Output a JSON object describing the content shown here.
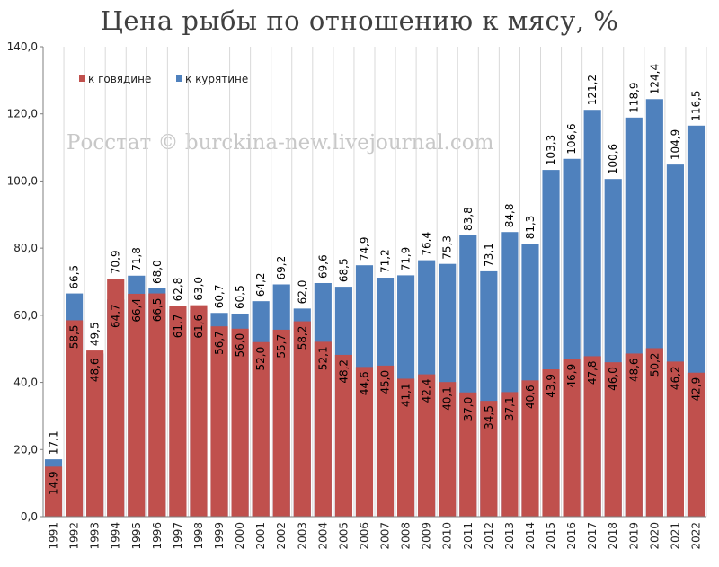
{
  "chart_data": {
    "type": "bar",
    "stacked": false,
    "overlapping": true,
    "title": "Цена рыбы по отношению к мясу, %",
    "watermark": "Росстат © burckina-new.livejournal.com",
    "categories": [
      "1991",
      "1992",
      "1993",
      "1994",
      "1995",
      "1996",
      "1997",
      "1998",
      "1999",
      "2000",
      "2001",
      "2002",
      "2003",
      "2004",
      "2005",
      "2006",
      "2007",
      "2008",
      "2009",
      "2010",
      "2011",
      "2012",
      "2013",
      "2014",
      "2015",
      "2016",
      "2017",
      "2018",
      "2019",
      "2020",
      "2021",
      "2022"
    ],
    "series": [
      {
        "name": "к говядине",
        "color": "#c0504d",
        "values": [
          14.9,
          58.5,
          49.5,
          70.9,
          66.4,
          66.5,
          62.8,
          63.0,
          56.7,
          56.0,
          52.0,
          55.7,
          58.2,
          52.1,
          48.2,
          44.6,
          45.0,
          41.1,
          42.4,
          40.1,
          37.0,
          34.5,
          37.1,
          40.6,
          43.9,
          46.9,
          47.8,
          46.0,
          48.6,
          50.2,
          46.2,
          42.9
        ]
      },
      {
        "name": "к курятине",
        "color": "#4f81bd",
        "values": [
          17.1,
          66.5,
          48.6,
          64.7,
          71.8,
          68.0,
          61.7,
          61.6,
          60.7,
          60.5,
          64.2,
          69.2,
          62.0,
          69.6,
          68.5,
          74.9,
          71.2,
          71.9,
          76.4,
          75.3,
          83.8,
          73.1,
          84.8,
          81.3,
          103.3,
          106.6,
          121.2,
          100.6,
          118.9,
          124.4,
          104.9,
          116.5
        ]
      }
    ],
    "y_ticks": [
      "0,0",
      "20,0",
      "40,0",
      "60,0",
      "80,0",
      "100,0",
      "120,0",
      "140,0"
    ],
    "ylim": [
      0,
      140
    ],
    "xlabel": "",
    "ylabel": "",
    "grid": "vertical",
    "legend": "top-left",
    "decimal_separator": ","
  }
}
